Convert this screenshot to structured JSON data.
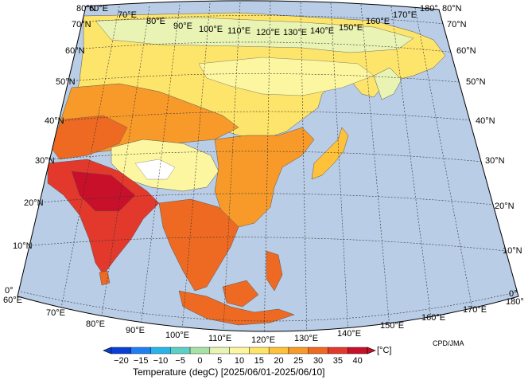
{
  "map": {
    "lat_labels_left": [
      "80°N",
      "70°N",
      "60°N",
      "50°N",
      "40°N",
      "30°N",
      "20°N",
      "10°N",
      "0°"
    ],
    "lat_labels_right": [
      "80°N",
      "70°N",
      "60°N",
      "50°N",
      "40°N",
      "30°N",
      "20°N",
      "10°N",
      "0°"
    ],
    "lon_labels_top": [
      "60°E",
      "70°E",
      "80°E",
      "90°E",
      "100°E",
      "110°E",
      "120°E",
      "130°E",
      "140°E",
      "150°E",
      "160°E",
      "170°E",
      "180°"
    ],
    "lon_labels_bottom": [
      "60°E",
      "70°E",
      "80°E",
      "90°E",
      "100°E",
      "110°E",
      "120°E",
      "130°E",
      "140°E",
      "150°E",
      "160°E",
      "170°E",
      "180°"
    ],
    "ocean_color": "#b9cde6",
    "credit": "CPD/JMA"
  },
  "colorbar": {
    "ticks": [
      "−20",
      "−15",
      "−10",
      "−5",
      "0",
      "5",
      "10",
      "15",
      "20",
      "25",
      "30",
      "35",
      "40"
    ],
    "unit": "[°C]",
    "title": "Temperature (degC) [2025/06/01-2025/06/10]",
    "colors": [
      "#0a3fd6",
      "#1e7ff0",
      "#28b4e6",
      "#5ecfc6",
      "#a6e1a6",
      "#e8f3b4",
      "#fcf6a0",
      "#fde46a",
      "#fdc13a",
      "#f79a2a",
      "#ee6a22",
      "#e2392c",
      "#c8102a"
    ]
  }
}
